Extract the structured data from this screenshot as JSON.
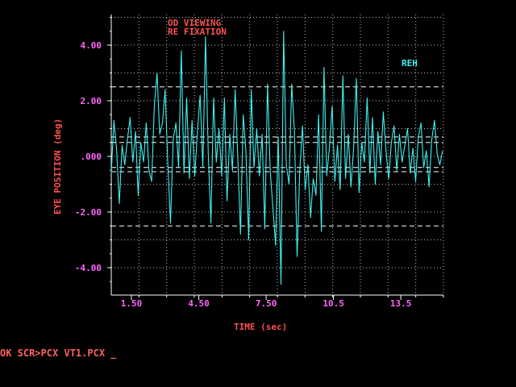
{
  "colors": {
    "background": "#000000",
    "axis": "#ffffff",
    "grid": "#ffffff",
    "tick_label": "#ff66ff",
    "axis_label": "#ff5050",
    "trace": "#40f0f0",
    "title": "#ff5050"
  },
  "chart_data": {
    "type": "line",
    "title_lines": [
      "OD VIEWING",
      "RE FIXATION"
    ],
    "xlabel": "TIME (sec)",
    "ylabel": "EYE POSITION (deg)",
    "xlim": [
      0.6,
      15.4
    ],
    "ylim": [
      -5.0,
      5.0
    ],
    "x_ticks": [
      1.5,
      4.5,
      7.5,
      10.5,
      13.5
    ],
    "x_tick_labels": [
      "1.50",
      "4.50",
      "7.50",
      "10.5",
      "13.5"
    ],
    "y_ticks": [
      4,
      2,
      0,
      -2,
      -4
    ],
    "y_tick_labels": [
      "4.00",
      "2.00",
      ".000",
      "-2.00",
      "-4.00"
    ],
    "grid": true,
    "reference_lines": [
      2.5,
      0.7,
      0.5,
      -0.4,
      -0.55,
      -2.5
    ],
    "series": [
      {
        "name": "REH",
        "x": [
          0.6,
          0.72,
          0.84,
          0.96,
          1.08,
          1.2,
          1.32,
          1.44,
          1.56,
          1.68,
          1.8,
          1.92,
          2.04,
          2.16,
          2.28,
          2.4,
          2.52,
          2.64,
          2.76,
          2.88,
          3.0,
          3.12,
          3.24,
          3.36,
          3.48,
          3.6,
          3.72,
          3.84,
          3.96,
          4.08,
          4.2,
          4.32,
          4.44,
          4.56,
          4.68,
          4.8,
          4.92,
          5.04,
          5.16,
          5.28,
          5.4,
          5.52,
          5.64,
          5.76,
          5.88,
          6.0,
          6.12,
          6.24,
          6.36,
          6.48,
          6.6,
          6.72,
          6.84,
          6.96,
          7.08,
          7.2,
          7.32,
          7.44,
          7.56,
          7.68,
          7.8,
          7.92,
          8.04,
          8.16,
          8.28,
          8.4,
          8.52,
          8.64,
          8.76,
          8.88,
          9.0,
          9.12,
          9.24,
          9.36,
          9.48,
          9.6,
          9.72,
          9.84,
          9.96,
          10.08,
          10.2,
          10.32,
          10.44,
          10.56,
          10.68,
          10.8,
          10.92,
          11.04,
          11.16,
          11.28,
          11.4,
          11.52,
          11.64,
          11.76,
          11.88,
          12.0,
          12.12,
          12.24,
          12.36,
          12.48,
          12.6,
          12.72,
          12.84,
          12.96,
          13.08,
          13.2,
          13.32,
          13.44,
          13.56,
          13.68,
          13.8,
          13.92,
          14.04,
          14.16,
          14.28,
          14.4,
          14.52,
          14.64,
          14.76,
          14.88,
          15.0,
          15.12,
          15.24,
          15.36
        ],
        "values": [
          -0.6,
          1.3,
          0.2,
          -1.7,
          0.4,
          -0.3,
          0.6,
          1.4,
          -0.2,
          0.9,
          -1.4,
          0.5,
          -0.2,
          1.2,
          -0.5,
          -0.9,
          1.8,
          3.0,
          0.8,
          1.2,
          2.4,
          -0.3,
          -2.4,
          0.6,
          1.2,
          -0.4,
          3.8,
          -0.6,
          2.1,
          -0.8,
          1.3,
          -0.7,
          0.9,
          2.2,
          -0.4,
          4.3,
          0.1,
          -2.4,
          2.1,
          -0.2,
          1.0,
          -0.7,
          2.1,
          -1.6,
          0.8,
          -0.5,
          2.4,
          -0.1,
          -2.8,
          1.5,
          0.2,
          -3.0,
          2.4,
          -0.4,
          1.0,
          -0.7,
          0.8,
          -2.6,
          2.6,
          -0.5,
          -1.8,
          -3.2,
          0.7,
          -4.6,
          4.5,
          -0.3,
          -1.0,
          2.6,
          0.9,
          -3.6,
          -0.5,
          1.1,
          -1.2,
          -0.3,
          -2.2,
          -0.8,
          -1.4,
          1.5,
          -2.7,
          3.2,
          -0.7,
          0.3,
          1.8,
          -0.9,
          0.4,
          -1.2,
          2.9,
          -0.8,
          0.8,
          -1.1,
          0.3,
          2.8,
          -1.3,
          0.5,
          -0.2,
          2.1,
          -0.6,
          1.4,
          -1.0,
          0.9,
          -0.3,
          1.6,
          0.2,
          -0.8,
          0.5,
          1.1,
          -0.5,
          0.8,
          -0.2,
          0.4,
          1.0,
          -0.6,
          0.3,
          -0.9,
          0.7,
          1.2,
          -0.4,
          0.2,
          -1.1,
          0.6,
          1.3,
          0.1,
          -0.3,
          0.2
        ]
      }
    ]
  },
  "prompt": {
    "text": "OK SCR>PCX VT1.PCX _"
  }
}
